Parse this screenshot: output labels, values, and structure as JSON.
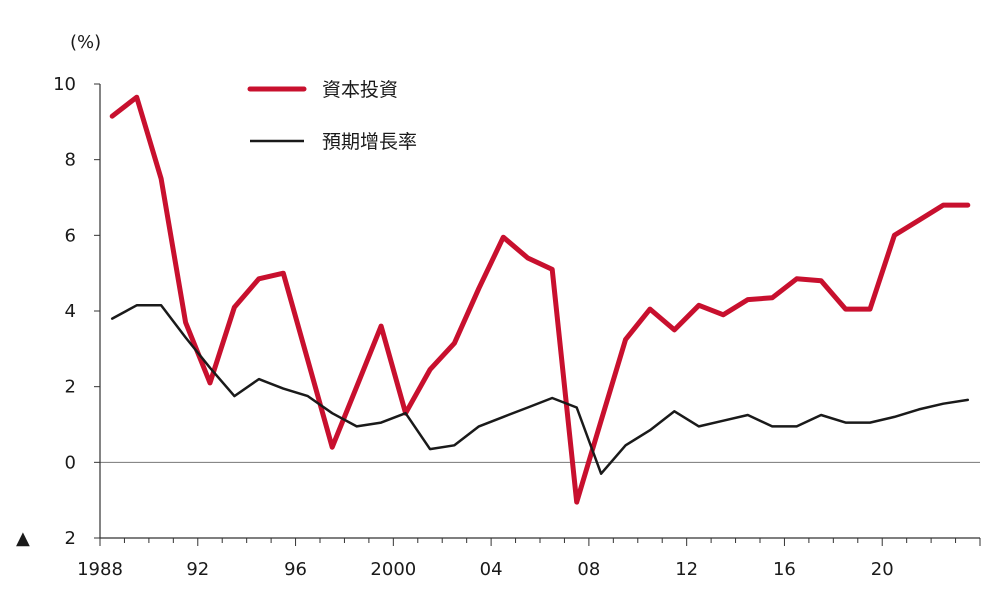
{
  "chart_data": {
    "type": "line",
    "title": "",
    "unit_label": "(%)",
    "xlabel": "",
    "ylabel": "(%)",
    "ylim": [
      -2,
      10
    ],
    "xlim": [
      1988,
      2024
    ],
    "y_ticks": [
      {
        "value": 10,
        "label": "10"
      },
      {
        "value": 8,
        "label": "8"
      },
      {
        "value": 6,
        "label": "6"
      },
      {
        "value": 4,
        "label": "4"
      },
      {
        "value": 2,
        "label": "2"
      },
      {
        "value": 0,
        "label": "0"
      },
      {
        "value": -2,
        "label": "2"
      }
    ],
    "x_ticks": [
      {
        "value": 1988,
        "label": "1988"
      },
      {
        "value": 1992,
        "label": "92"
      },
      {
        "value": 1996,
        "label": "96"
      },
      {
        "value": 2000,
        "label": "2000"
      },
      {
        "value": 2004,
        "label": "04"
      },
      {
        "value": 2008,
        "label": "08"
      },
      {
        "value": 2012,
        "label": "12"
      },
      {
        "value": 2016,
        "label": "16"
      },
      {
        "value": 2020,
        "label": "20"
      }
    ],
    "negative_marker": "▲",
    "x": [
      1988.5,
      1989.5,
      1990.5,
      1991.5,
      1992.5,
      1993.5,
      1994.5,
      1995.5,
      1996.5,
      1997.5,
      1998.5,
      1999.5,
      2000.5,
      2001.5,
      2002.5,
      2003.5,
      2004.5,
      2005.5,
      2006.5,
      2007.5,
      2008.5,
      2009.5,
      2010.5,
      2011.5,
      2012.5,
      2013.5,
      2014.5,
      2015.5,
      2016.5,
      2017.5,
      2018.5,
      2019.5,
      2020.5,
      2021.5,
      2022.5,
      2023.5
    ],
    "series": [
      {
        "name": "資本投資",
        "color": "#c8102e",
        "values": [
          9.15,
          9.65,
          7.5,
          3.7,
          2.1,
          4.1,
          4.85,
          5.0,
          2.7,
          0.4,
          2.0,
          3.6,
          1.3,
          2.45,
          3.15,
          4.6,
          5.95,
          5.4,
          5.1,
          -1.05,
          1.1,
          3.25,
          4.05,
          3.5,
          4.15,
          3.9,
          4.3,
          4.35,
          4.85,
          4.8,
          4.05,
          4.05,
          6.0,
          6.4,
          6.8,
          6.8
        ],
        "legend_label": "資本投資"
      },
      {
        "name": "預期增長率",
        "color": "#1a1a1a",
        "values": [
          3.8,
          4.15,
          4.15,
          3.3,
          2.5,
          1.75,
          2.2,
          1.95,
          1.75,
          1.3,
          0.95,
          1.05,
          1.3,
          0.35,
          0.45,
          0.95,
          1.2,
          1.45,
          1.7,
          1.45,
          -0.3,
          0.45,
          0.85,
          1.35,
          0.95,
          1.1,
          1.25,
          0.95,
          0.95,
          1.25,
          1.05,
          1.05,
          1.2,
          1.4,
          1.55,
          1.65
        ],
        "legend_label": "預期增長率"
      }
    ]
  }
}
